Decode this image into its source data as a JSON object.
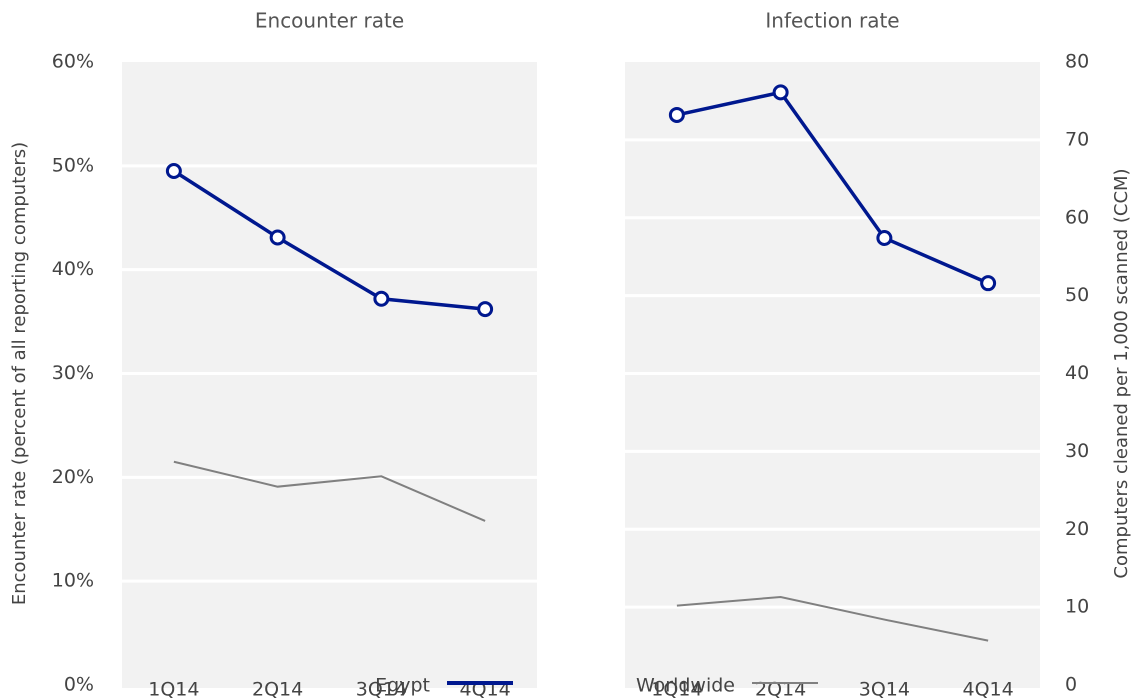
{
  "chart_data": [
    {
      "type": "line",
      "title": "Encounter rate",
      "y_label": "Encounter rate (percent of all reporting computers)",
      "categories": [
        "1Q14",
        "2Q14",
        "3Q14",
        "4Q14"
      ],
      "series": [
        {
          "name": "Egypt",
          "color": "#00188f",
          "values": [
            49.5,
            43.1,
            37.2,
            36.2
          ],
          "markers": true
        },
        {
          "name": "Worldwide",
          "color": "#808080",
          "values": [
            21.5,
            19.1,
            20.1,
            15.8
          ],
          "markers": false
        }
      ],
      "ylim": [
        0,
        60
      ],
      "yticks": [
        {
          "value": 0,
          "label": "0%"
        },
        {
          "value": 10,
          "label": "10%"
        },
        {
          "value": 20,
          "label": "20%"
        },
        {
          "value": 30,
          "label": "30%"
        },
        {
          "value": 40,
          "label": "40%"
        },
        {
          "value": 50,
          "label": "50%"
        },
        {
          "value": 60,
          "label": "60%"
        }
      ],
      "y_axis_side": "left",
      "grid": true
    },
    {
      "type": "line",
      "title": "Infection rate",
      "y_label": "Computers cleaned per 1,000 scanned (CCM)",
      "categories": [
        "1Q14",
        "2Q14",
        "3Q14",
        "4Q14"
      ],
      "series": [
        {
          "color": "#00188f",
          "values": [
            73.2,
            76.1,
            57.4,
            51.6
          ],
          "markers": true
        },
        {
          "color": "#808080",
          "values": [
            10.2,
            11.3,
            8.4,
            5.7
          ],
          "markers": false
        }
      ],
      "ylim": [
        0,
        80
      ],
      "yticks": [
        0,
        10,
        20,
        30,
        40,
        50,
        60,
        70,
        80
      ],
      "y_axis_side": "right",
      "grid": true
    }
  ]
}
